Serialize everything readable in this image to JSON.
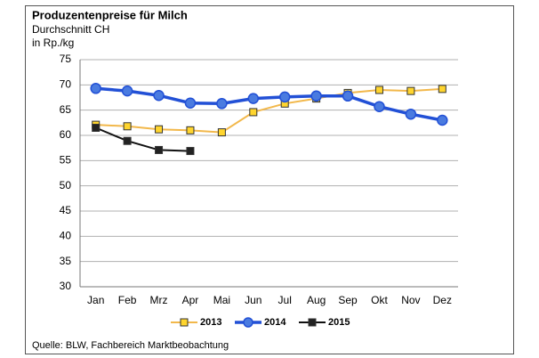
{
  "chart_data": {
    "type": "line",
    "title": "Produzentenpreise für Milch",
    "subtitle": "Durchschnitt CH",
    "y_label": "in Rp./kg",
    "source": "Quelle: BLW, Fachbereich Marktbeobachtung",
    "categories": [
      "Jan",
      "Feb",
      "Mrz",
      "Apr",
      "Mai",
      "Jun",
      "Jul",
      "Aug",
      "Sep",
      "Okt",
      "Nov",
      "Dez"
    ],
    "series": [
      {
        "name": "2013",
        "color": "#f2b84b",
        "marker": "square",
        "marker_color": "#ffd52e",
        "values": [
          62.1,
          61.8,
          61.2,
          61.0,
          60.6,
          64.6,
          66.3,
          67.3,
          68.4,
          69.0,
          68.8,
          69.2
        ]
      },
      {
        "name": "2014",
        "color": "#2250d6",
        "marker": "circle",
        "marker_color": "#4a7be0",
        "values": [
          69.3,
          68.8,
          67.9,
          66.4,
          66.3,
          67.3,
          67.6,
          67.8,
          67.8,
          65.7,
          64.2,
          63.0
        ]
      },
      {
        "name": "2015",
        "color": "#111111",
        "marker": "square",
        "marker_color": "#222222",
        "values": [
          61.5,
          58.9,
          57.1,
          56.9,
          null,
          null,
          null,
          null,
          null,
          null,
          null,
          null
        ]
      }
    ],
    "ylim": [
      30,
      75
    ],
    "yticks": [
      30,
      35,
      40,
      45,
      50,
      55,
      60,
      65,
      70,
      75
    ],
    "grid": true,
    "legend": "bottom"
  }
}
